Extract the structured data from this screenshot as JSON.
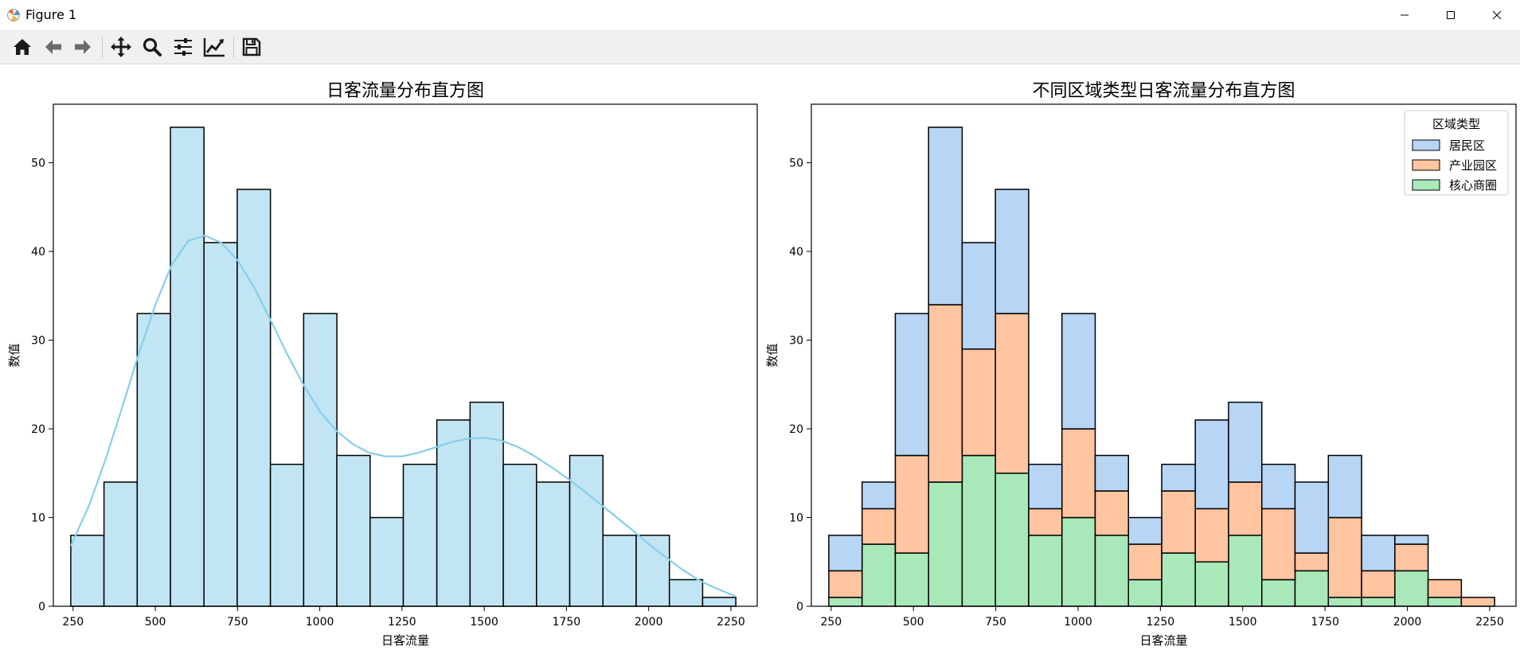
{
  "window": {
    "title": "Figure 1"
  },
  "toolbar": {
    "tools": [
      "home-icon",
      "back-arrow-icon",
      "forward-arrow-icon",
      "pan-icon",
      "zoom-icon",
      "configure-subplots-icon",
      "edit-axis-icon",
      "save-icon"
    ]
  },
  "chart_data": [
    {
      "type": "bar",
      "title": "日客流量分布直方图",
      "xlabel": "日客流量",
      "ylabel": "数值",
      "xlim": [
        190,
        2330
      ],
      "ylim": [
        0,
        56.6
      ],
      "xticks": [
        250,
        500,
        750,
        1000,
        1250,
        1500,
        1750,
        2000,
        2250
      ],
      "yticks": [
        0,
        10,
        20,
        30,
        40,
        50
      ],
      "bin_edges": [
        243,
        344,
        445,
        546,
        648,
        749,
        850,
        951,
        1052,
        1153,
        1254,
        1356,
        1457,
        1558,
        1659,
        1760,
        1861,
        1962,
        2063,
        2164,
        2265
      ],
      "values": [
        8,
        14,
        33,
        54,
        41,
        47,
        16,
        33,
        17,
        10,
        16,
        21,
        23,
        16,
        14,
        17,
        8,
        8,
        3,
        1
      ],
      "bar_color": "#c2e5f3",
      "kde": {
        "color": "#87ceeb",
        "x": [
          243,
          300,
          350,
          400,
          450,
          500,
          550,
          600,
          650,
          700,
          750,
          800,
          850,
          900,
          950,
          1000,
          1050,
          1100,
          1150,
          1200,
          1250,
          1300,
          1350,
          1400,
          1450,
          1500,
          1550,
          1600,
          1650,
          1700,
          1750,
          1800,
          1850,
          1900,
          1950,
          2000,
          2050,
          2100,
          2150,
          2200,
          2265
        ],
        "y": [
          6.8,
          11.5,
          16.7,
          22.5,
          28.5,
          34.0,
          38.5,
          41.2,
          41.8,
          41.0,
          39.0,
          36.0,
          32.3,
          28.5,
          25.0,
          22.0,
          19.8,
          18.3,
          17.3,
          16.9,
          16.9,
          17.3,
          17.9,
          18.5,
          18.9,
          19.0,
          18.7,
          18.0,
          17.0,
          15.8,
          14.5,
          13.1,
          11.6,
          10.1,
          8.6,
          7.0,
          5.6,
          4.2,
          3.0,
          2.1,
          1.1
        ]
      }
    },
    {
      "type": "bar",
      "stacked": true,
      "title": "不同区域类型日客流量分布直方图",
      "xlabel": "日客流量",
      "ylabel": "数值",
      "xlim": [
        190,
        2330
      ],
      "ylim": [
        0,
        56.6
      ],
      "xticks": [
        250,
        500,
        750,
        1000,
        1250,
        1500,
        1750,
        2000,
        2250
      ],
      "yticks": [
        0,
        10,
        20,
        30,
        40,
        50
      ],
      "bin_edges": [
        243,
        344,
        445,
        546,
        648,
        749,
        850,
        951,
        1052,
        1153,
        1254,
        1356,
        1457,
        1558,
        1659,
        1760,
        1861,
        1962,
        2063,
        2164,
        2265
      ],
      "legend": {
        "title": "区域类型",
        "placement": "top-right"
      },
      "series": [
        {
          "name": "核心商圈",
          "color": "#a9e9b9",
          "values": [
            1,
            7,
            6,
            14,
            17,
            15,
            8,
            10,
            8,
            3,
            6,
            5,
            8,
            3,
            4,
            1,
            1,
            4,
            1,
            0
          ]
        },
        {
          "name": "产业园区",
          "color": "#ffc4a0",
          "values": [
            3,
            4,
            11,
            20,
            12,
            18,
            3,
            10,
            5,
            4,
            7,
            6,
            6,
            8,
            2,
            9,
            3,
            3,
            2,
            1
          ]
        },
        {
          "name": "居民区",
          "color": "#b7d5f5",
          "values": [
            4,
            3,
            16,
            20,
            12,
            14,
            5,
            13,
            4,
            3,
            3,
            10,
            9,
            5,
            8,
            7,
            4,
            1,
            0,
            0
          ]
        }
      ],
      "legend_order": [
        "居民区",
        "产业园区",
        "核心商圈"
      ]
    }
  ]
}
